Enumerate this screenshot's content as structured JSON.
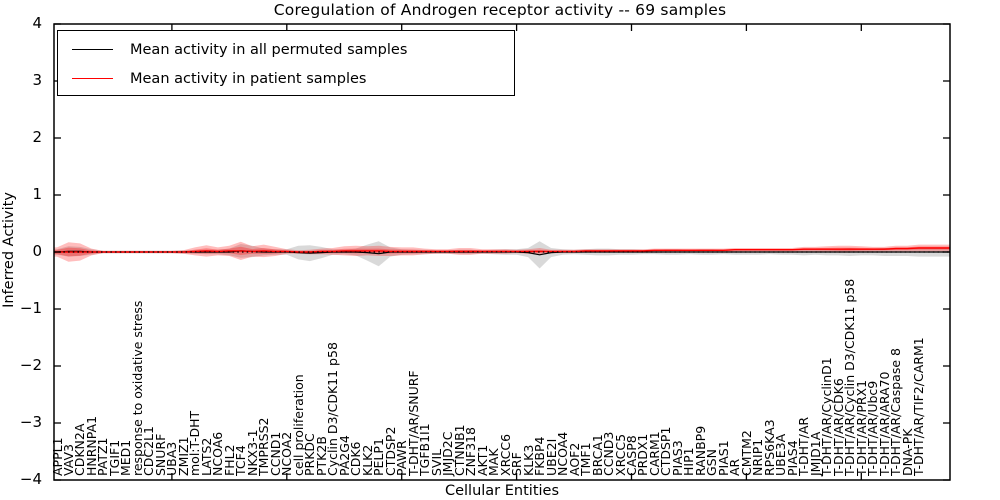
{
  "title": "Coregulation of Androgen receptor activity -- 69 samples",
  "axes": {
    "ylabel": "Inferred Activity",
    "xlabel": "Cellular Entities",
    "ytick_labels": [
      "4",
      "3",
      "2",
      "1",
      "0",
      "−1",
      "−2",
      "−3",
      "−4"
    ],
    "ytick_values": [
      4,
      3,
      2,
      1,
      0,
      -1,
      -2,
      -3,
      -4
    ]
  },
  "legend": {
    "position": "upper left",
    "items": [
      {
        "label": "Mean activity in all permuted samples",
        "color": "#000000"
      },
      {
        "label": "Mean activity in patient samples",
        "color": "#ff0000"
      }
    ]
  },
  "chart_data": {
    "type": "line",
    "title": "Coregulation of Androgen receptor activity -- 69 samples",
    "xlabel": "Cellular Entities",
    "ylabel": "Inferred Activity",
    "ylim": [
      -4,
      4
    ],
    "grid": false,
    "legend_position": "upper left",
    "zero_reference_line": true,
    "categories": [
      "APPL1",
      "VAV3",
      "CDKN2A",
      "HNRNPA1",
      "PATZ1",
      "TGIF1",
      "MED1",
      "response to oxidative stress",
      "CDC2L1",
      "SNURF",
      "UBA3",
      "ZMIZ1",
      "mol:T-DHT",
      "LATS2",
      "NCOA6",
      "FHL2",
      "TCF4",
      "NKX3-1",
      "TMPRSS2",
      "CCND1",
      "NCOA2",
      "cell proliferation",
      "PRKDC",
      "PTK2B",
      "Cyclin D3/CDK11 p58",
      "PA2G4",
      "CDK6",
      "KLK2",
      "PELP1",
      "CTDSP2",
      "PAWR",
      "T-DHT/AR/SNURF",
      "TGFB1I1",
      "SVIL",
      "JMJD2C",
      "CTNNB1",
      "ZNF318",
      "AKT1",
      "MAK",
      "XRCC6",
      "SRF",
      "KLK3",
      "FKBP4",
      "UBE2I",
      "NCOA4",
      "AOF2",
      "TMF1",
      "BRCA1",
      "CCND3",
      "XRCC5",
      "CASP8",
      "PRDX1",
      "CARM1",
      "CTDSP1",
      "PIAS3",
      "HIP1",
      "RANBP9",
      "GSN",
      "PIAS1",
      "AR",
      "CMTM2",
      "NRIP1",
      "RPS6KA3",
      "UBE3A",
      "PIAS4",
      "T-DHT/AR",
      "JMJD1A",
      "T-DHT/AR/CyclinD1",
      "T-DHT/AR/CDK6",
      "T-DHT/AR/Cyclin D3/CDK11 p58",
      "T-DHT/AR/PRX1",
      "T-DHT/AR/Ubc9",
      "T-DHT/AR/ARA70",
      "T-DHT/AR/Caspase 8",
      "DNA-PK",
      "T-DHT/AR/TIF2/CARM1"
    ],
    "series": [
      {
        "name": "Mean activity in all permuted samples",
        "color": "#000000",
        "band_color": "rgba(0,0,0,0.15)",
        "mean": [
          0,
          0.01,
          0.01,
          0,
          0,
          0,
          0,
          0,
          0,
          0,
          0,
          0,
          0,
          0,
          0,
          0,
          0.02,
          0.01,
          0,
          0,
          0,
          -0.01,
          -0.02,
          -0.01,
          0,
          0,
          0,
          -0.01,
          -0.03,
          0,
          0,
          0,
          0,
          0,
          0,
          0,
          0,
          0,
          0,
          0,
          0,
          -0.01,
          -0.05,
          -0.01,
          0,
          0,
          0,
          0,
          0,
          0,
          0,
          0,
          0,
          0,
          0,
          0,
          0,
          0,
          0,
          0,
          0,
          0,
          0,
          0,
          0,
          0,
          0,
          0,
          0,
          0,
          0,
          0,
          0,
          0,
          0,
          0
        ],
        "std": [
          0.05,
          0.09,
          0.08,
          0.05,
          0.025,
          0.025,
          0.025,
          0.025,
          0.025,
          0.025,
          0.025,
          0.03,
          0.03,
          0.04,
          0.04,
          0.06,
          0.12,
          0.1,
          0.06,
          0.05,
          0.05,
          0.12,
          0.14,
          0.1,
          0.05,
          0.04,
          0.06,
          0.14,
          0.22,
          0.08,
          0.05,
          0.04,
          0.04,
          0.03,
          0.03,
          0.04,
          0.04,
          0.03,
          0.04,
          0.05,
          0.05,
          0.08,
          0.24,
          0.08,
          0.05,
          0.04,
          0.05,
          0.06,
          0.06,
          0.05,
          0.05,
          0.04,
          0.04,
          0.05,
          0.05,
          0.04,
          0.05,
          0.05,
          0.04,
          0.05,
          0.05,
          0.05,
          0.04,
          0.05,
          0.05,
          0.06,
          0.05,
          0.06,
          0.06,
          0.07,
          0.06,
          0.06,
          0.07,
          0.07,
          0.07,
          0.08
        ]
      },
      {
        "name": "Mean activity in patient samples",
        "color": "#ff0000",
        "band_color": "rgba(255,0,0,0.26)",
        "mean": [
          0,
          0,
          0,
          0,
          0,
          0,
          0,
          0,
          0,
          0,
          0,
          0,
          0.01,
          0.02,
          0.01,
          0.02,
          0.02,
          0.01,
          0.02,
          0.01,
          0.01,
          0,
          0,
          0.01,
          0.01,
          0.02,
          0.02,
          0.02,
          0.02,
          0.01,
          0.01,
          0.01,
          0.01,
          0.01,
          0.01,
          0.01,
          0.01,
          0.01,
          0.01,
          0.01,
          0.01,
          0.01,
          0.01,
          0.01,
          0.01,
          0.01,
          0.02,
          0.02,
          0.02,
          0.02,
          0.02,
          0.02,
          0.03,
          0.03,
          0.03,
          0.03,
          0.03,
          0.03,
          0.03,
          0.04,
          0.04,
          0.04,
          0.04,
          0.04,
          0.04,
          0.05,
          0.05,
          0.05,
          0.05,
          0.05,
          0.05,
          0.05,
          0.05,
          0.06,
          0.06,
          0.07
        ],
        "std": [
          0.08,
          0.17,
          0.15,
          0.06,
          0.02,
          0.02,
          0.02,
          0.02,
          0.02,
          0.02,
          0.02,
          0.03,
          0.07,
          0.1,
          0.07,
          0.09,
          0.16,
          0.09,
          0.11,
          0.08,
          0.04,
          0.03,
          0.04,
          0.05,
          0.06,
          0.08,
          0.09,
          0.08,
          0.09,
          0.08,
          0.07,
          0.07,
          0.05,
          0.04,
          0.04,
          0.06,
          0.06,
          0.04,
          0.04,
          0.04,
          0.03,
          0.04,
          0.06,
          0.03,
          0.03,
          0.03,
          0.03,
          0.03,
          0.03,
          0.03,
          0.03,
          0.03,
          0.03,
          0.03,
          0.03,
          0.03,
          0.03,
          0.03,
          0.03,
          0.03,
          0.03,
          0.03,
          0.03,
          0.03,
          0.03,
          0.04,
          0.04,
          0.05,
          0.06,
          0.06,
          0.05,
          0.04,
          0.04,
          0.05,
          0.05,
          0.06
        ]
      }
    ]
  }
}
